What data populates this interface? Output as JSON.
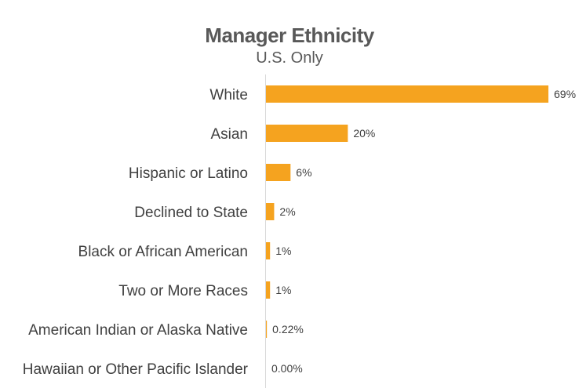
{
  "chart_data": {
    "type": "bar",
    "orientation": "horizontal",
    "title": "Manager Ethnicity",
    "subtitle": "U.S. Only",
    "categories": [
      "White",
      "Asian",
      "Hispanic or Latino",
      "Declined to State",
      "Black or African American",
      "Two or More Races",
      "American Indian or Alaska Native",
      "Hawaiian or Other Pacific Islander"
    ],
    "values": [
      69,
      20,
      6,
      2,
      1,
      1,
      0.22,
      0.0
    ],
    "value_labels": [
      "69%",
      "20%",
      "6%",
      "2%",
      "1%",
      "1%",
      "0.22%",
      "0.00%"
    ],
    "unit": "%",
    "xlim": [
      0,
      69
    ],
    "bar_color": "#F5A31F",
    "grid": false,
    "legend": "none"
  }
}
